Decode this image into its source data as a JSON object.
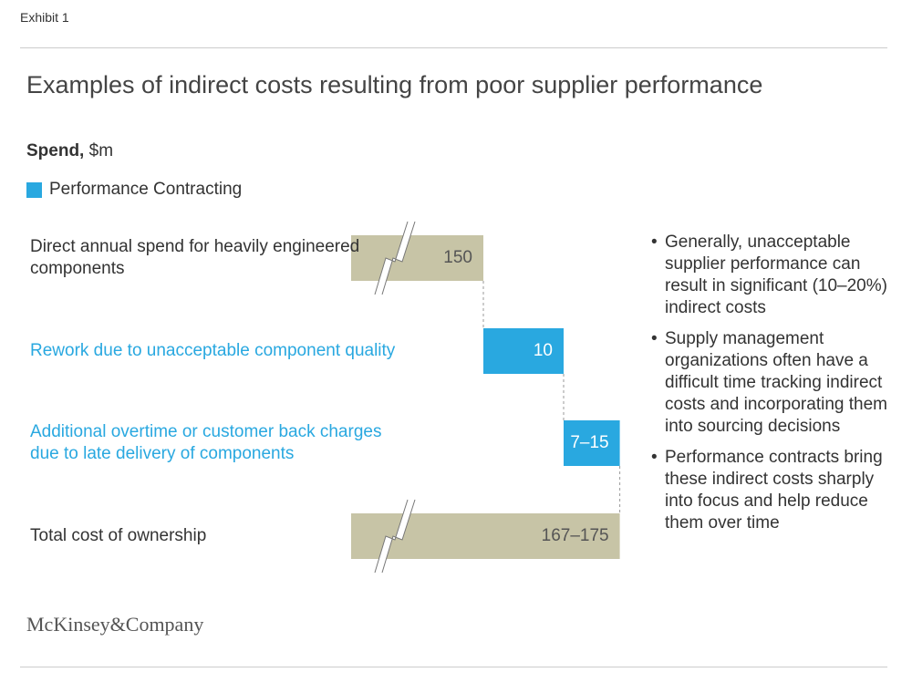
{
  "header": {
    "exhibit": "Exhibit 1",
    "footer": "McKinsey&Company"
  },
  "chart_data": {
    "type": "waterfall",
    "title": "Examples of indirect costs resulting from poor supplier performance",
    "unit_label": "Spend,",
    "unit": "$m",
    "legend": {
      "label": "Performance Contracting",
      "color": "#29a8e0"
    },
    "categories": [
      "Direct annual spend for heavily engineered components",
      "Rework due to unacceptable component quality",
      "Additional overtime or customer back charges due to late delivery of components",
      "Total cost of ownership"
    ],
    "kinds": [
      "total",
      "increment",
      "increment",
      "total"
    ],
    "low": [
      150,
      10,
      7,
      167
    ],
    "high": [
      150,
      10,
      15,
      175
    ],
    "value_labels": [
      "150",
      "10",
      "7–15",
      "167–175"
    ],
    "total_color": "#c7c4a6",
    "notes": [
      "Generally, unacceptable supplier performance can result in significant (10–20%) indirect costs",
      "Supply management organizations often have a difficult time tracking indirect costs and incorporating them into sourcing decisions",
      "Performance contracts bring these indirect costs sharply into focus and help reduce them over time"
    ]
  }
}
